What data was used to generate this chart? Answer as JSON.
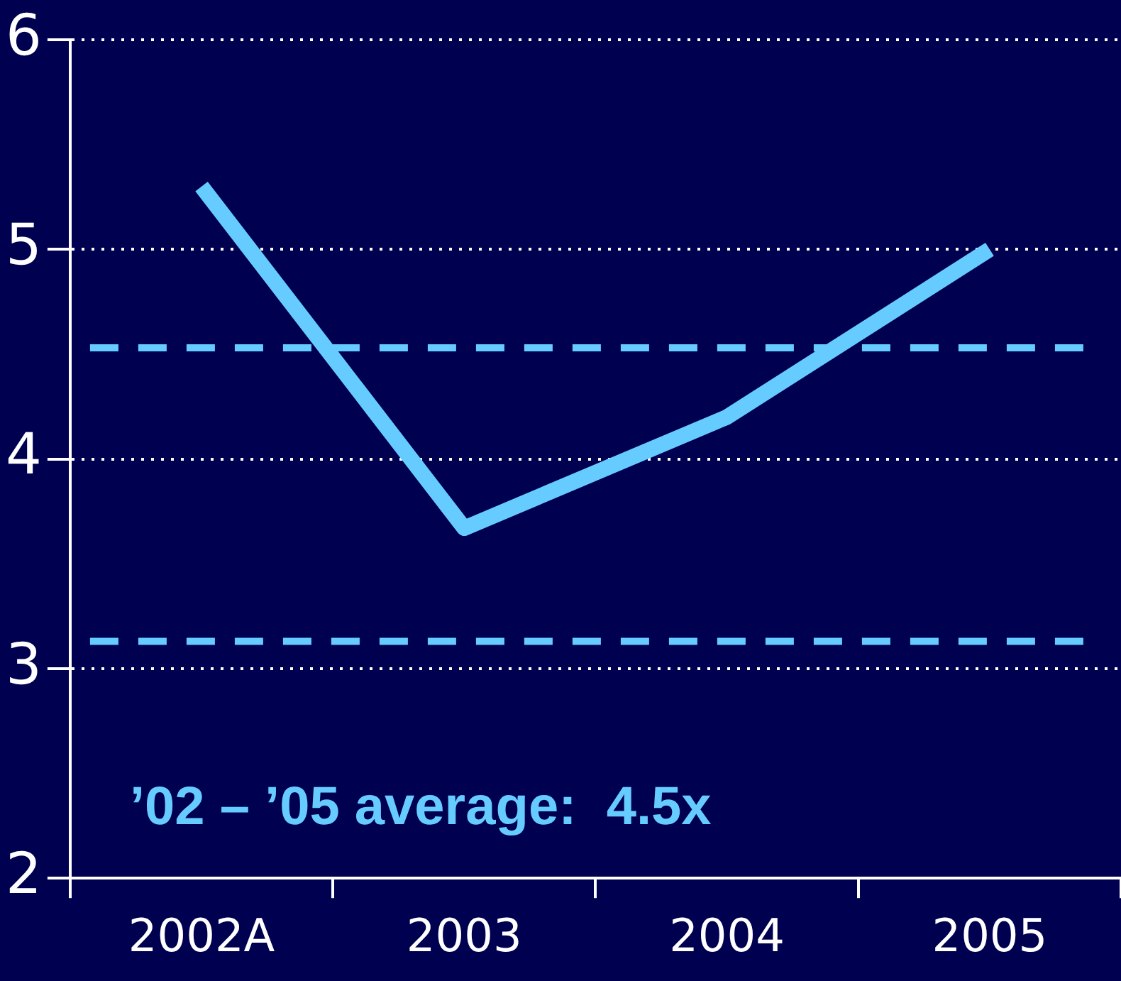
{
  "chart_data": {
    "type": "line",
    "categories": [
      "2002A",
      "2003",
      "2004",
      "2005"
    ],
    "series": [
      {
        "color": "#66ccff",
        "values": [
          5.3,
          3.67,
          4.2,
          5.0
        ]
      }
    ],
    "ylim": [
      2,
      6
    ],
    "yticks": [
      2,
      3,
      4,
      5,
      6
    ],
    "grid": "y",
    "marker": "none",
    "line_style": "solid",
    "legend": false,
    "ref_lines": [
      {
        "axis": "y",
        "value": 4.53,
        "color": "#66ccff",
        "line_style": "dashed"
      },
      {
        "axis": "y",
        "value": 3.13,
        "color": "#66ccff",
        "line_style": "dashed"
      }
    ],
    "annotations": [
      "’02 – ’05 average:  4.5x"
    ]
  }
}
